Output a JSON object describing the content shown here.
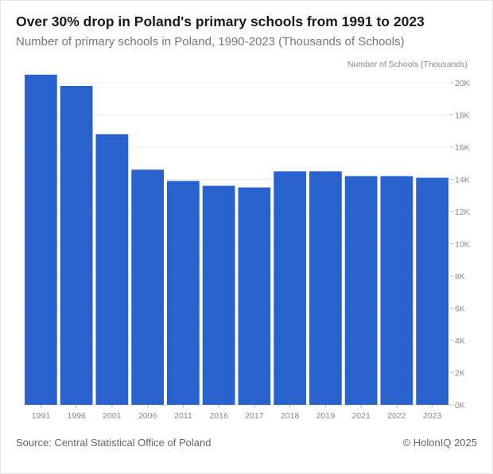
{
  "chart_data": {
    "type": "bar",
    "title": "Over 30% drop in Poland's primary schools from 1991 to 2023",
    "subtitle": "Number of primary schools in Poland, 1990-2023 (Thousands of Schools)",
    "xlabel": "",
    "ylabel": "Number of Schools (Thousands)",
    "categories": [
      "1991",
      "1996",
      "2001",
      "2006",
      "2011",
      "2016",
      "2017",
      "2018",
      "2019",
      "2021",
      "2022",
      "2023"
    ],
    "values": [
      20.5,
      19.8,
      16.8,
      14.6,
      13.9,
      13.6,
      13.5,
      14.5,
      14.5,
      14.2,
      14.2,
      14.1
    ],
    "ylim": [
      0,
      20
    ],
    "yticks": [
      "0K",
      "2K",
      "4K",
      "6K",
      "8K",
      "10K",
      "12K",
      "14K",
      "16K",
      "18K",
      "20K"
    ],
    "grid": true,
    "bar_color": "#2962cc",
    "source": "Source: Central Statistical Office of Poland",
    "credit": "© HolonIQ 2025"
  }
}
